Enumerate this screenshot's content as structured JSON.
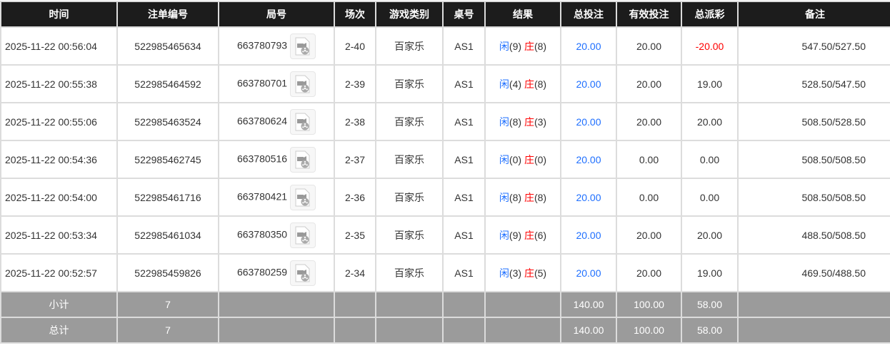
{
  "headers": [
    "时间",
    "注单编号",
    "局号",
    "场次",
    "游戏类别",
    "桌号",
    "结果",
    "总投注",
    "有效投注",
    "总派彩",
    "备注"
  ],
  "rows": [
    {
      "time": "2025-11-22 00:56:04",
      "bet_id": "522985465634",
      "round": "663780793",
      "session": "2-40",
      "game": "百家乐",
      "table": "AS1",
      "player": "闲",
      "player_pts": "(9)",
      "banker": "庄",
      "banker_pts": "(8)",
      "total": "20.00",
      "valid": "20.00",
      "payout": "-20.00",
      "payout_negative": true,
      "note": "547.50/527.50"
    },
    {
      "time": "2025-11-22 00:55:38",
      "bet_id": "522985464592",
      "round": "663780701",
      "session": "2-39",
      "game": "百家乐",
      "table": "AS1",
      "player": "闲",
      "player_pts": "(4)",
      "banker": "庄",
      "banker_pts": "(8)",
      "total": "20.00",
      "valid": "20.00",
      "payout": "19.00",
      "note": "528.50/547.50"
    },
    {
      "time": "2025-11-22 00:55:06",
      "bet_id": "522985463524",
      "round": "663780624",
      "session": "2-38",
      "game": "百家乐",
      "table": "AS1",
      "player": "闲",
      "player_pts": "(8)",
      "banker": "庄",
      "banker_pts": "(3)",
      "total": "20.00",
      "valid": "20.00",
      "payout": "20.00",
      "note": "508.50/528.50"
    },
    {
      "time": "2025-11-22 00:54:36",
      "bet_id": "522985462745",
      "round": "663780516",
      "session": "2-37",
      "game": "百家乐",
      "table": "AS1",
      "player": "闲",
      "player_pts": "(0)",
      "banker": "庄",
      "banker_pts": "(0)",
      "total": "20.00",
      "valid": "0.00",
      "payout": "0.00",
      "note": "508.50/508.50"
    },
    {
      "time": "2025-11-22 00:54:00",
      "bet_id": "522985461716",
      "round": "663780421",
      "session": "2-36",
      "game": "百家乐",
      "table": "AS1",
      "player": "闲",
      "player_pts": "(8)",
      "banker": "庄",
      "banker_pts": "(8)",
      "total": "20.00",
      "valid": "0.00",
      "payout": "0.00",
      "note": "508.50/508.50"
    },
    {
      "time": "2025-11-22 00:53:34",
      "bet_id": "522985461034",
      "round": "663780350",
      "session": "2-35",
      "game": "百家乐",
      "table": "AS1",
      "player": "闲",
      "player_pts": "(9)",
      "banker": "庄",
      "banker_pts": "(6)",
      "total": "20.00",
      "valid": "20.00",
      "payout": "20.00",
      "note": "488.50/508.50"
    },
    {
      "time": "2025-11-22 00:52:57",
      "bet_id": "522985459826",
      "round": "663780259",
      "session": "2-34",
      "game": "百家乐",
      "table": "AS1",
      "player": "闲",
      "player_pts": "(3)",
      "banker": "庄",
      "banker_pts": "(5)",
      "total": "20.00",
      "valid": "20.00",
      "payout": "19.00",
      "note": "469.50/488.50"
    }
  ],
  "summary": [
    {
      "label": "小计",
      "count": "7",
      "total": "140.00",
      "valid": "100.00",
      "payout": "58.00"
    },
    {
      "label": "总计",
      "count": "7",
      "total": "140.00",
      "valid": "100.00",
      "payout": "58.00"
    }
  ],
  "icons": {
    "replay": "video-replay-icon"
  },
  "colors": {
    "header_bg": "#1c1c1c",
    "summary_bg": "#9b9b9b",
    "player": "#1e6fff",
    "banker": "#ff0000",
    "negative": "#ff0000"
  }
}
